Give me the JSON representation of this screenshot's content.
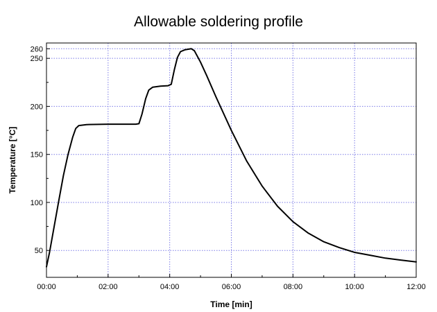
{
  "chart_data": {
    "type": "line",
    "title": "Allowable soldering profile",
    "xlabel": "Time [min]",
    "ylabel": "Temperature [°C]",
    "x_unit": "minutes",
    "xlim": [
      0,
      12
    ],
    "ylim": [
      22,
      266
    ],
    "x_ticks": [
      {
        "value": 0,
        "label": "00:00"
      },
      {
        "value": 2,
        "label": "02:00"
      },
      {
        "value": 4,
        "label": "04:00"
      },
      {
        "value": 6,
        "label": "06:00"
      },
      {
        "value": 8,
        "label": "08:00"
      },
      {
        "value": 10,
        "label": "10:00"
      },
      {
        "value": 12,
        "label": "12:00"
      }
    ],
    "y_ticks": [
      {
        "value": 50,
        "label": "50"
      },
      {
        "value": 100,
        "label": "100"
      },
      {
        "value": 150,
        "label": "150"
      },
      {
        "value": 200,
        "label": "200"
      },
      {
        "value": 250,
        "label": "250"
      },
      {
        "value": 260,
        "label": "260"
      }
    ],
    "grid": true,
    "grid_color": "#7a7ae6",
    "line_color": "#000000",
    "series": [
      {
        "values": [
          [
            0.0,
            33
          ],
          [
            0.1,
            48
          ],
          [
            0.25,
            75
          ],
          [
            0.4,
            102
          ],
          [
            0.55,
            128
          ],
          [
            0.7,
            150
          ],
          [
            0.85,
            168
          ],
          [
            0.95,
            177
          ],
          [
            1.05,
            180
          ],
          [
            1.3,
            181
          ],
          [
            2.0,
            181.5
          ],
          [
            2.5,
            181.5
          ],
          [
            2.9,
            181.5
          ],
          [
            3.0,
            182
          ],
          [
            3.1,
            192
          ],
          [
            3.22,
            208
          ],
          [
            3.32,
            217
          ],
          [
            3.45,
            220
          ],
          [
            3.7,
            221
          ],
          [
            3.95,
            221.5
          ],
          [
            4.05,
            223
          ],
          [
            4.15,
            238
          ],
          [
            4.25,
            251
          ],
          [
            4.35,
            257
          ],
          [
            4.5,
            259
          ],
          [
            4.7,
            260
          ],
          [
            4.8,
            258
          ],
          [
            5.0,
            246
          ],
          [
            5.2,
            232
          ],
          [
            5.5,
            210
          ],
          [
            6.0,
            175
          ],
          [
            6.5,
            143
          ],
          [
            7.0,
            117
          ],
          [
            7.5,
            96
          ],
          [
            8.0,
            80
          ],
          [
            8.5,
            68
          ],
          [
            9.0,
            59
          ],
          [
            9.5,
            53
          ],
          [
            10.0,
            48
          ],
          [
            10.5,
            45
          ],
          [
            11.0,
            42
          ],
          [
            11.5,
            40
          ],
          [
            12.0,
            38
          ]
        ]
      }
    ]
  }
}
